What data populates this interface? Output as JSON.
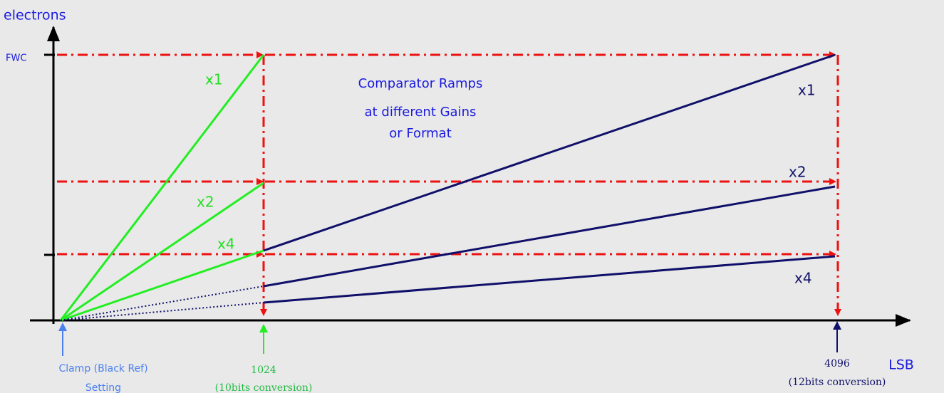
{
  "axes": {
    "y_label": "electrons",
    "x_label": "LSB",
    "fwc_label": "FWC"
  },
  "green_ramps": [
    "x1",
    "x2",
    "x4"
  ],
  "navy_ramps": [
    "x1",
    "x2",
    "x4"
  ],
  "annotation": [
    "Comparator Ramps",
    "at different Gains",
    "or Format"
  ],
  "clamp": [
    "Clamp (Black Ref)",
    "Setting"
  ],
  "marker_1024": [
    "1024",
    "(10bits conversion)"
  ],
  "marker_4096": [
    "4096",
    "(12bits conversion)"
  ]
}
